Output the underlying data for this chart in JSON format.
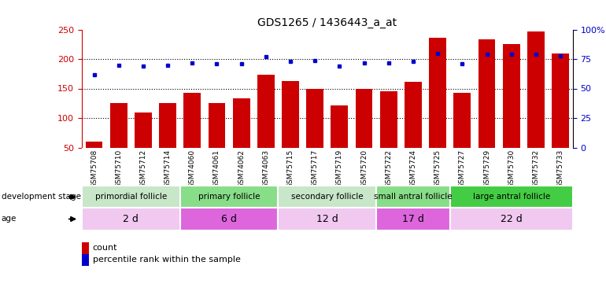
{
  "title": "GDS1265 / 1436443_a_at",
  "samples": [
    "GSM75708",
    "GSM75710",
    "GSM75712",
    "GSM75714",
    "GSM74060",
    "GSM74061",
    "GSM74062",
    "GSM74063",
    "GSM75715",
    "GSM75717",
    "GSM75719",
    "GSM75720",
    "GSM75722",
    "GSM75724",
    "GSM75725",
    "GSM75727",
    "GSM75729",
    "GSM75730",
    "GSM75732",
    "GSM75733"
  ],
  "counts": [
    60,
    125,
    109,
    125,
    143,
    126,
    133,
    174,
    163,
    149,
    121,
    149,
    146,
    161,
    236,
    143,
    234,
    225,
    247,
    210
  ],
  "percentiles": [
    62,
    70,
    69,
    70,
    72,
    71,
    71,
    77,
    73,
    74,
    69,
    72,
    72,
    73,
    80,
    71,
    79,
    79,
    79,
    78
  ],
  "ylim_left": [
    50,
    250
  ],
  "ylim_right": [
    0,
    100
  ],
  "yticks_left": [
    50,
    100,
    150,
    200,
    250
  ],
  "yticks_right": [
    0,
    25,
    50,
    75,
    100
  ],
  "bar_color": "#cc0000",
  "dot_color": "#0000cc",
  "groups": [
    {
      "label": "primordial follicle",
      "age": "2 d",
      "start": 0,
      "end": 4,
      "color_stage": "#c8e6c8",
      "color_age": "#f0c8f0"
    },
    {
      "label": "primary follicle",
      "age": "6 d",
      "start": 4,
      "end": 8,
      "color_stage": "#88dd88",
      "color_age": "#dd66dd"
    },
    {
      "label": "secondary follicle",
      "age": "12 d",
      "start": 8,
      "end": 12,
      "color_stage": "#c8e6c8",
      "color_age": "#f0c8f0"
    },
    {
      "label": "small antral follicle",
      "age": "17 d",
      "start": 12,
      "end": 15,
      "color_stage": "#88dd88",
      "color_age": "#dd66dd"
    },
    {
      "label": "large antral follicle",
      "age": "22 d",
      "start": 15,
      "end": 20,
      "color_stage": "#44cc44",
      "color_age": "#f0c8f0"
    }
  ],
  "legend_labels": [
    "count",
    "percentile rank within the sample"
  ],
  "bar_color_legend": "#cc0000",
  "dot_color_legend": "#0000cc",
  "left_axis_color": "#cc0000",
  "right_axis_color": "#0000cc",
  "xtick_bg_color": "#cccccc",
  "grid_yticks": [
    100,
    150,
    200
  ]
}
